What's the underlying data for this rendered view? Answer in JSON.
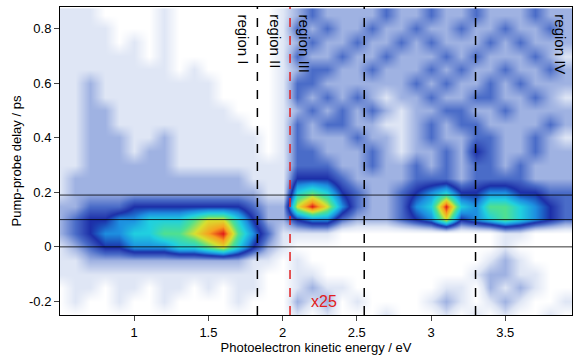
{
  "chart_data": {
    "type": "heatmap",
    "x_label": "Photoelectron kinetic energy / eV",
    "y_label": "Pump-probe delay / ps",
    "xlim": [
      0.5,
      3.95
    ],
    "ylim": [
      -0.25,
      0.88
    ],
    "xticks": [
      1,
      1.5,
      2,
      2.5,
      3,
      3.5
    ],
    "yticks": [
      -0.2,
      0,
      0.2,
      0.4,
      0.6,
      0.8
    ],
    "zlim": [
      0,
      10
    ],
    "colors": [
      "#ffffff",
      "#dfe6f5",
      "#9fb2e2",
      "#4a6cc8",
      "#1c2fa8",
      "#1d8fe0",
      "#20d0e0",
      "#50e090",
      "#d8e030",
      "#f8a020",
      "#e01818"
    ],
    "x": [
      0.5,
      0.6,
      0.7,
      0.8,
      0.9,
      1.0,
      1.1,
      1.2,
      1.3,
      1.4,
      1.5,
      1.6,
      1.7,
      1.8,
      1.9,
      2.0,
      2.1,
      2.2,
      2.3,
      2.4,
      2.5,
      2.6,
      2.7,
      2.8,
      2.9,
      3.0,
      3.1,
      3.2,
      3.3,
      3.4,
      3.5,
      3.6,
      3.7,
      3.8,
      3.9
    ],
    "y": [
      -0.25,
      -0.2,
      -0.15,
      -0.1,
      -0.05,
      0,
      0.05,
      0.1,
      0.15,
      0.2,
      0.25,
      0.3,
      0.35,
      0.4,
      0.45,
      0.5,
      0.55,
      0.6,
      0.65,
      0.7,
      0.75,
      0.8,
      0.85
    ],
    "z": [
      [
        0,
        0,
        0,
        0,
        0,
        0,
        0,
        0,
        0,
        0,
        0,
        0,
        0,
        0,
        0,
        0,
        1,
        0,
        1,
        0,
        0,
        0,
        1,
        0,
        0,
        0,
        1,
        0,
        1,
        0,
        1,
        0,
        0,
        1,
        0
      ],
      [
        0,
        1,
        0,
        0,
        1,
        0,
        0,
        1,
        0,
        0,
        0,
        0,
        1,
        0,
        0,
        0,
        2,
        1,
        2,
        0,
        1,
        0,
        0,
        0,
        0,
        1,
        2,
        1,
        0,
        1,
        2,
        1,
        0,
        0,
        1
      ],
      [
        0,
        1,
        1,
        0,
        1,
        1,
        0,
        1,
        1,
        0,
        1,
        0,
        1,
        1,
        0,
        0,
        1,
        2,
        1,
        1,
        0,
        0,
        0,
        0,
        0,
        0,
        1,
        1,
        0,
        2,
        1,
        2,
        1,
        0,
        0
      ],
      [
        1,
        1,
        1,
        1,
        1,
        1,
        1,
        1,
        1,
        1,
        1,
        1,
        1,
        1,
        0,
        0,
        1,
        1,
        0,
        0,
        0,
        0,
        0,
        0,
        0,
        0,
        0,
        0,
        1,
        2,
        2,
        1,
        1,
        0,
        0
      ],
      [
        1,
        1,
        2,
        2,
        2,
        2,
        2,
        2,
        2,
        2,
        2,
        2,
        2,
        1,
        1,
        0,
        1,
        0,
        0,
        0,
        0,
        0,
        0,
        0,
        0,
        0,
        0,
        0,
        0,
        1,
        2,
        1,
        0,
        0,
        0
      ],
      [
        1,
        2,
        3,
        4,
        4,
        5,
        5,
        5,
        6,
        6,
        7,
        8,
        6,
        4,
        2,
        1,
        0,
        0,
        0,
        0,
        0,
        0,
        0,
        0,
        0,
        0,
        0,
        0,
        0,
        0,
        1,
        0,
        0,
        0,
        0
      ],
      [
        2,
        3,
        4,
        5,
        5,
        6,
        6,
        7,
        7,
        8,
        9,
        10,
        7,
        5,
        3,
        1,
        1,
        1,
        1,
        0,
        0,
        0,
        0,
        0,
        0,
        0,
        0,
        0,
        0,
        0,
        1,
        1,
        0,
        0,
        0
      ],
      [
        2,
        3,
        4,
        4,
        5,
        5,
        6,
        6,
        6,
        7,
        8,
        8,
        6,
        4,
        2,
        2,
        4,
        5,
        5,
        3,
        2,
        2,
        2,
        3,
        4,
        5,
        8,
        4,
        5,
        6,
        7,
        6,
        5,
        4,
        3
      ],
      [
        2,
        2,
        3,
        3,
        3,
        4,
        4,
        4,
        4,
        4,
        4,
        4,
        4,
        3,
        2,
        2,
        8,
        10,
        8,
        5,
        3,
        2,
        2,
        3,
        5,
        6,
        10,
        6,
        5,
        7,
        7,
        6,
        5,
        4,
        3
      ],
      [
        1,
        2,
        2,
        2,
        2,
        2,
        2,
        2,
        2,
        2,
        2,
        2,
        2,
        2,
        1,
        1,
        6,
        7,
        6,
        4,
        3,
        2,
        2,
        3,
        4,
        5,
        6,
        4,
        4,
        5,
        5,
        4,
        4,
        3,
        3
      ],
      [
        1,
        2,
        2,
        2,
        2,
        2,
        2,
        2,
        2,
        2,
        2,
        2,
        2,
        1,
        1,
        1,
        4,
        4,
        4,
        3,
        2,
        2,
        2,
        2,
        3,
        3,
        3,
        2,
        3,
        3,
        3,
        3,
        2,
        2,
        2
      ],
      [
        1,
        1,
        2,
        2,
        2,
        2,
        2,
        2,
        1,
        1,
        1,
        1,
        1,
        1,
        1,
        1,
        3,
        3,
        3,
        2,
        2,
        3,
        2,
        2,
        3,
        2,
        3,
        2,
        3,
        3,
        2,
        3,
        2,
        2,
        2
      ],
      [
        1,
        1,
        2,
        2,
        2,
        1,
        2,
        2,
        1,
        1,
        1,
        1,
        1,
        1,
        0,
        1,
        3,
        3,
        2,
        2,
        2,
        3,
        2,
        1,
        2,
        2,
        3,
        2,
        4,
        3,
        2,
        2,
        3,
        2,
        2
      ],
      [
        1,
        1,
        2,
        2,
        2,
        1,
        1,
        2,
        1,
        1,
        1,
        1,
        1,
        1,
        0,
        1,
        3,
        2,
        2,
        2,
        3,
        2,
        2,
        1,
        2,
        3,
        2,
        2,
        3,
        3,
        2,
        2,
        3,
        2,
        1
      ],
      [
        1,
        1,
        2,
        2,
        1,
        1,
        1,
        1,
        1,
        1,
        1,
        1,
        1,
        0,
        0,
        1,
        3,
        2,
        3,
        3,
        2,
        2,
        1,
        1,
        2,
        3,
        2,
        3,
        3,
        2,
        2,
        2,
        2,
        3,
        2
      ],
      [
        1,
        1,
        2,
        2,
        1,
        1,
        1,
        1,
        1,
        1,
        1,
        1,
        0,
        0,
        0,
        1,
        2,
        3,
        2,
        3,
        2,
        3,
        2,
        1,
        2,
        2,
        3,
        3,
        2,
        2,
        3,
        2,
        2,
        2,
        2
      ],
      [
        1,
        1,
        2,
        1,
        1,
        1,
        1,
        1,
        1,
        1,
        1,
        0,
        0,
        0,
        0,
        1,
        3,
        2,
        3,
        2,
        3,
        2,
        1,
        2,
        2,
        3,
        2,
        2,
        3,
        3,
        2,
        2,
        3,
        2,
        1
      ],
      [
        1,
        1,
        2,
        1,
        1,
        1,
        1,
        1,
        1,
        1,
        1,
        0,
        0,
        0,
        0,
        1,
        3,
        3,
        2,
        2,
        2,
        2,
        2,
        2,
        3,
        2,
        3,
        2,
        2,
        3,
        2,
        3,
        2,
        2,
        2
      ],
      [
        1,
        1,
        1,
        1,
        1,
        1,
        1,
        1,
        0,
        1,
        0,
        0,
        0,
        0,
        0,
        1,
        2,
        3,
        3,
        2,
        2,
        3,
        2,
        2,
        2,
        3,
        2,
        3,
        2,
        2,
        3,
        2,
        2,
        3,
        2
      ],
      [
        1,
        1,
        1,
        1,
        1,
        1,
        0,
        1,
        0,
        0,
        0,
        0,
        0,
        0,
        0,
        1,
        3,
        2,
        2,
        3,
        2,
        2,
        3,
        2,
        2,
        2,
        3,
        2,
        3,
        2,
        2,
        2,
        3,
        2,
        1
      ],
      [
        1,
        1,
        1,
        1,
        0,
        1,
        0,
        1,
        0,
        0,
        0,
        0,
        0,
        0,
        0,
        1,
        2,
        3,
        2,
        2,
        3,
        2,
        2,
        3,
        2,
        3,
        2,
        2,
        2,
        3,
        2,
        3,
        2,
        2,
        2
      ],
      [
        1,
        1,
        1,
        1,
        0,
        0,
        0,
        1,
        0,
        0,
        0,
        0,
        0,
        0,
        0,
        1,
        3,
        2,
        3,
        2,
        2,
        3,
        2,
        2,
        3,
        2,
        2,
        3,
        2,
        2,
        3,
        2,
        2,
        3,
        2
      ],
      [
        1,
        1,
        1,
        0,
        0,
        0,
        0,
        1,
        0,
        0,
        0,
        0,
        0,
        0,
        0,
        1,
        2,
        3,
        2,
        2,
        2,
        2,
        3,
        2,
        2,
        3,
        2,
        2,
        3,
        2,
        2,
        2,
        3,
        2,
        2
      ]
    ],
    "vlines": [
      {
        "x": 1.83,
        "color": "#000000",
        "line_style": "dash"
      },
      {
        "x": 2.05,
        "color": "#e02020",
        "line_style": "dash"
      },
      {
        "x": 2.55,
        "color": "#000000",
        "line_style": "dash"
      },
      {
        "x": 3.3,
        "color": "#000000",
        "line_style": "dash"
      }
    ],
    "hlines": [
      0,
      0.1,
      0.19
    ],
    "annotations": [
      {
        "text": "region I",
        "x": 1.74,
        "y": 0.86,
        "color": "#000000"
      },
      {
        "text": "region II",
        "x": 1.95,
        "y": 0.86,
        "color": "#000000"
      },
      {
        "text": "region III",
        "x": 2.15,
        "y": 0.86,
        "color": "#000000"
      },
      {
        "text": "region IV",
        "x": 3.87,
        "y": 0.86,
        "color": "#000000"
      },
      {
        "text": "x25",
        "x": 2.18,
        "y": -0.2,
        "color": "#e02020"
      }
    ]
  }
}
